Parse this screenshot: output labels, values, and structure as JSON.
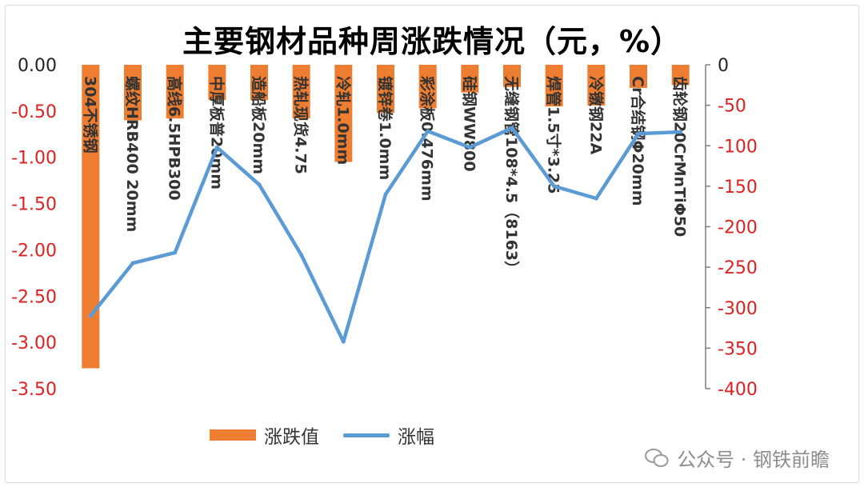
{
  "title": "主要钢材品种周涨跌情况（元，%）",
  "legend": {
    "bar_label": "涨跌值",
    "line_label": "涨幅"
  },
  "watermark": "公众号 · 钢铁前瞻",
  "colors": {
    "bar": "#ed7d31",
    "line": "#5b9bd5",
    "negative_tick": "#e02020"
  },
  "chart_data": {
    "type": "bar",
    "categories": [
      "304不锈钢",
      "螺纹HRB400 20mm",
      "高线6.5HPB300",
      "中厚板普20mm",
      "造船板20mm",
      "热轧现货4.75",
      "冷轧1.0mm",
      "镀锌卷1.0mm",
      "彩涂板0.476mm",
      "硅钢WW800",
      "无缝钢管108*4.5（8163）",
      "焊管1.5寸*3.25",
      "冷镦钢22A",
      "Cr合结钢Φ20mm",
      "齿轮钢20CrMnTiΦ50"
    ],
    "series": [
      {
        "name": "涨跌值",
        "type": "bar",
        "axis": "left",
        "values": [
          -3.28,
          -0.6,
          -0.58,
          -0.38,
          -0.38,
          -0.58,
          -1.05,
          -0.52,
          -0.47,
          -0.3,
          -0.24,
          -0.45,
          -0.44,
          -0.25,
          -0.22
        ]
      },
      {
        "name": "涨幅",
        "type": "line",
        "axis": "right",
        "values": [
          -310,
          -245,
          -232,
          -102,
          -148,
          -235,
          -342,
          -160,
          -82,
          -102,
          -78,
          -150,
          -165,
          -85,
          -83
        ]
      }
    ],
    "y_left": {
      "ylim": [
        -3.5,
        0
      ],
      "ticks": [
        "0.00",
        "-0.50",
        "-1.00",
        "-1.50",
        "-2.00",
        "-2.50",
        "-3.00",
        "-3.50"
      ]
    },
    "y_right": {
      "ylim": [
        -400,
        0
      ],
      "ticks": [
        "0",
        "-50",
        "-100",
        "-150",
        "-200",
        "-250",
        "-300",
        "-350",
        "-400"
      ]
    },
    "legend_position": "bottom-left",
    "grid": false
  }
}
